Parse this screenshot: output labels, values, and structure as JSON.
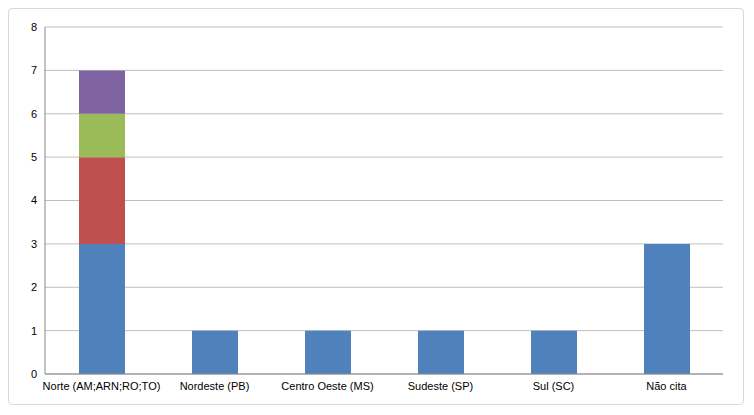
{
  "chart_data": {
    "type": "bar",
    "categories": [
      "Norte (AM;ARN;RO;TO)",
      "Nordeste (PB)",
      "Centro Oeste (MS)",
      "Sudeste (SP)",
      "Sul (SC)",
      "Não cita"
    ],
    "series": [
      {
        "color": "#4f81bd",
        "values": [
          3,
          1,
          1,
          1,
          1,
          3
        ]
      },
      {
        "color": "#c0504d",
        "values": [
          2,
          0,
          0,
          0,
          0,
          0
        ]
      },
      {
        "color": "#9bbb59",
        "values": [
          1,
          0,
          0,
          0,
          0,
          0
        ]
      },
      {
        "color": "#8064a2",
        "values": [
          1,
          0,
          0,
          0,
          0,
          0
        ]
      }
    ],
    "ylim": [
      0,
      8
    ],
    "yticks": [
      0,
      1,
      2,
      3,
      4,
      5,
      6,
      7,
      8
    ],
    "grid": true,
    "stacked": true
  }
}
